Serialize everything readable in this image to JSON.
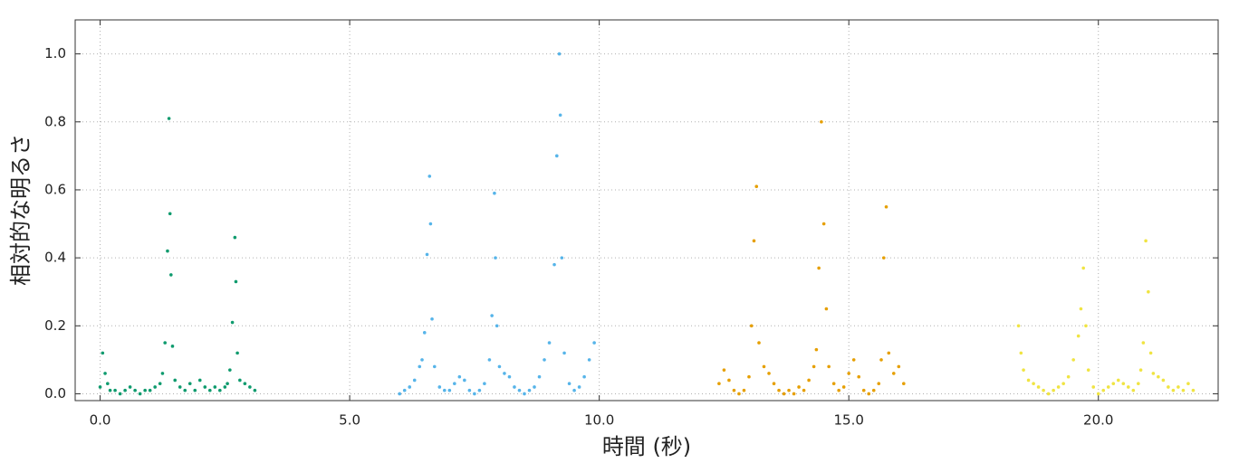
{
  "chart_data": {
    "type": "scatter",
    "xlabel": "時間 (秒)",
    "ylabel": "相対的な明るさ",
    "xlim": [
      -0.5,
      22.4
    ],
    "ylim": [
      -0.02,
      1.1
    ],
    "xticks": [
      {
        "value": 0,
        "label": "0.0"
      },
      {
        "value": 5,
        "label": "5.0"
      },
      {
        "value": 10,
        "label": "10.0"
      },
      {
        "value": 15,
        "label": "15.0"
      },
      {
        "value": 20,
        "label": "20.0"
      }
    ],
    "yticks": [
      {
        "value": 0,
        "label": "0.0"
      },
      0.2,
      0.4,
      0.6,
      0.8,
      {
        "value": 1,
        "label": "1.0"
      }
    ],
    "grid": true,
    "series": [
      {
        "color": "#0f9b6e",
        "x": [
          0.0,
          0.05,
          0.1,
          0.15,
          0.2,
          0.3,
          0.4,
          0.5,
          0.6,
          0.7,
          0.8,
          0.9,
          1.0,
          1.1,
          1.2,
          1.25,
          1.3,
          1.35,
          1.38,
          1.4,
          1.42,
          1.45,
          1.5,
          1.6,
          1.7,
          1.8,
          1.9,
          2.0,
          2.1,
          2.2,
          2.3,
          2.4,
          2.5,
          2.55,
          2.6,
          2.65,
          2.7,
          2.72,
          2.75,
          2.8,
          2.9,
          3.0,
          3.1
        ],
        "values": [
          0.02,
          0.12,
          0.06,
          0.03,
          0.01,
          0.01,
          0.0,
          0.01,
          0.02,
          0.01,
          0.0,
          0.01,
          0.01,
          0.02,
          0.03,
          0.06,
          0.15,
          0.42,
          0.81,
          0.53,
          0.35,
          0.14,
          0.04,
          0.02,
          0.01,
          0.03,
          0.01,
          0.04,
          0.02,
          0.01,
          0.02,
          0.01,
          0.02,
          0.03,
          0.07,
          0.21,
          0.46,
          0.33,
          0.12,
          0.04,
          0.03,
          0.02,
          0.01
        ]
      },
      {
        "color": "#56b4e9",
        "x": [
          6.0,
          6.1,
          6.2,
          6.3,
          6.4,
          6.45,
          6.5,
          6.55,
          6.6,
          6.62,
          6.65,
          6.7,
          6.8,
          6.9,
          7.0,
          7.1,
          7.2,
          7.3,
          7.4,
          7.5,
          7.6,
          7.7,
          7.8,
          7.85,
          7.9,
          7.92,
          7.95,
          8.0,
          8.1,
          8.2,
          8.3,
          8.4,
          8.5,
          8.6,
          8.7,
          8.8,
          8.9,
          9.0,
          9.1,
          9.15,
          9.2,
          9.22,
          9.25,
          9.3,
          9.4,
          9.5,
          9.6,
          9.7,
          9.8,
          9.9
        ],
        "values": [
          0.0,
          0.01,
          0.02,
          0.04,
          0.08,
          0.1,
          0.18,
          0.41,
          0.64,
          0.5,
          0.22,
          0.08,
          0.02,
          0.01,
          0.01,
          0.03,
          0.05,
          0.04,
          0.01,
          0.0,
          0.01,
          0.03,
          0.1,
          0.23,
          0.59,
          0.4,
          0.2,
          0.08,
          0.06,
          0.05,
          0.02,
          0.01,
          0.0,
          0.01,
          0.02,
          0.05,
          0.1,
          0.15,
          0.38,
          0.7,
          1.0,
          0.82,
          0.4,
          0.12,
          0.03,
          0.01,
          0.02,
          0.05,
          0.1,
          0.15
        ]
      },
      {
        "color": "#e69f00",
        "x": [
          12.4,
          12.5,
          12.6,
          12.7,
          12.8,
          12.9,
          13.0,
          13.05,
          13.1,
          13.15,
          13.2,
          13.3,
          13.4,
          13.5,
          13.6,
          13.7,
          13.8,
          13.9,
          14.0,
          14.1,
          14.2,
          14.3,
          14.35,
          14.4,
          14.45,
          14.5,
          14.55,
          14.6,
          14.7,
          14.8,
          14.9,
          15.0,
          15.1,
          15.2,
          15.3,
          15.4,
          15.5,
          15.6,
          15.65,
          15.7,
          15.75,
          15.8,
          15.9,
          16.0,
          16.1
        ],
        "values": [
          0.03,
          0.07,
          0.04,
          0.01,
          0.0,
          0.01,
          0.05,
          0.2,
          0.45,
          0.61,
          0.15,
          0.08,
          0.06,
          0.03,
          0.01,
          0.0,
          0.01,
          0.0,
          0.02,
          0.01,
          0.04,
          0.08,
          0.13,
          0.37,
          0.8,
          0.5,
          0.25,
          0.08,
          0.03,
          0.01,
          0.02,
          0.06,
          0.1,
          0.05,
          0.01,
          0.0,
          0.01,
          0.03,
          0.1,
          0.4,
          0.55,
          0.12,
          0.06,
          0.08,
          0.03
        ]
      },
      {
        "color": "#f0e442",
        "x": [
          18.4,
          18.45,
          18.5,
          18.6,
          18.7,
          18.8,
          18.9,
          19.0,
          19.1,
          19.2,
          19.3,
          19.4,
          19.5,
          19.6,
          19.65,
          19.7,
          19.75,
          19.8,
          19.9,
          20.0,
          20.1,
          20.2,
          20.3,
          20.4,
          20.5,
          20.6,
          20.7,
          20.8,
          20.85,
          20.9,
          20.95,
          21.0,
          21.05,
          21.1,
          21.2,
          21.3,
          21.4,
          21.5,
          21.6,
          21.7,
          21.8,
          21.9
        ],
        "values": [
          0.2,
          0.12,
          0.07,
          0.04,
          0.03,
          0.02,
          0.01,
          0.0,
          0.01,
          0.02,
          0.03,
          0.05,
          0.1,
          0.17,
          0.25,
          0.37,
          0.2,
          0.07,
          0.02,
          0.0,
          0.01,
          0.02,
          0.03,
          0.04,
          0.03,
          0.02,
          0.01,
          0.03,
          0.07,
          0.15,
          0.45,
          0.3,
          0.12,
          0.06,
          0.05,
          0.04,
          0.02,
          0.01,
          0.02,
          0.01,
          0.03,
          0.01
        ]
      }
    ]
  }
}
